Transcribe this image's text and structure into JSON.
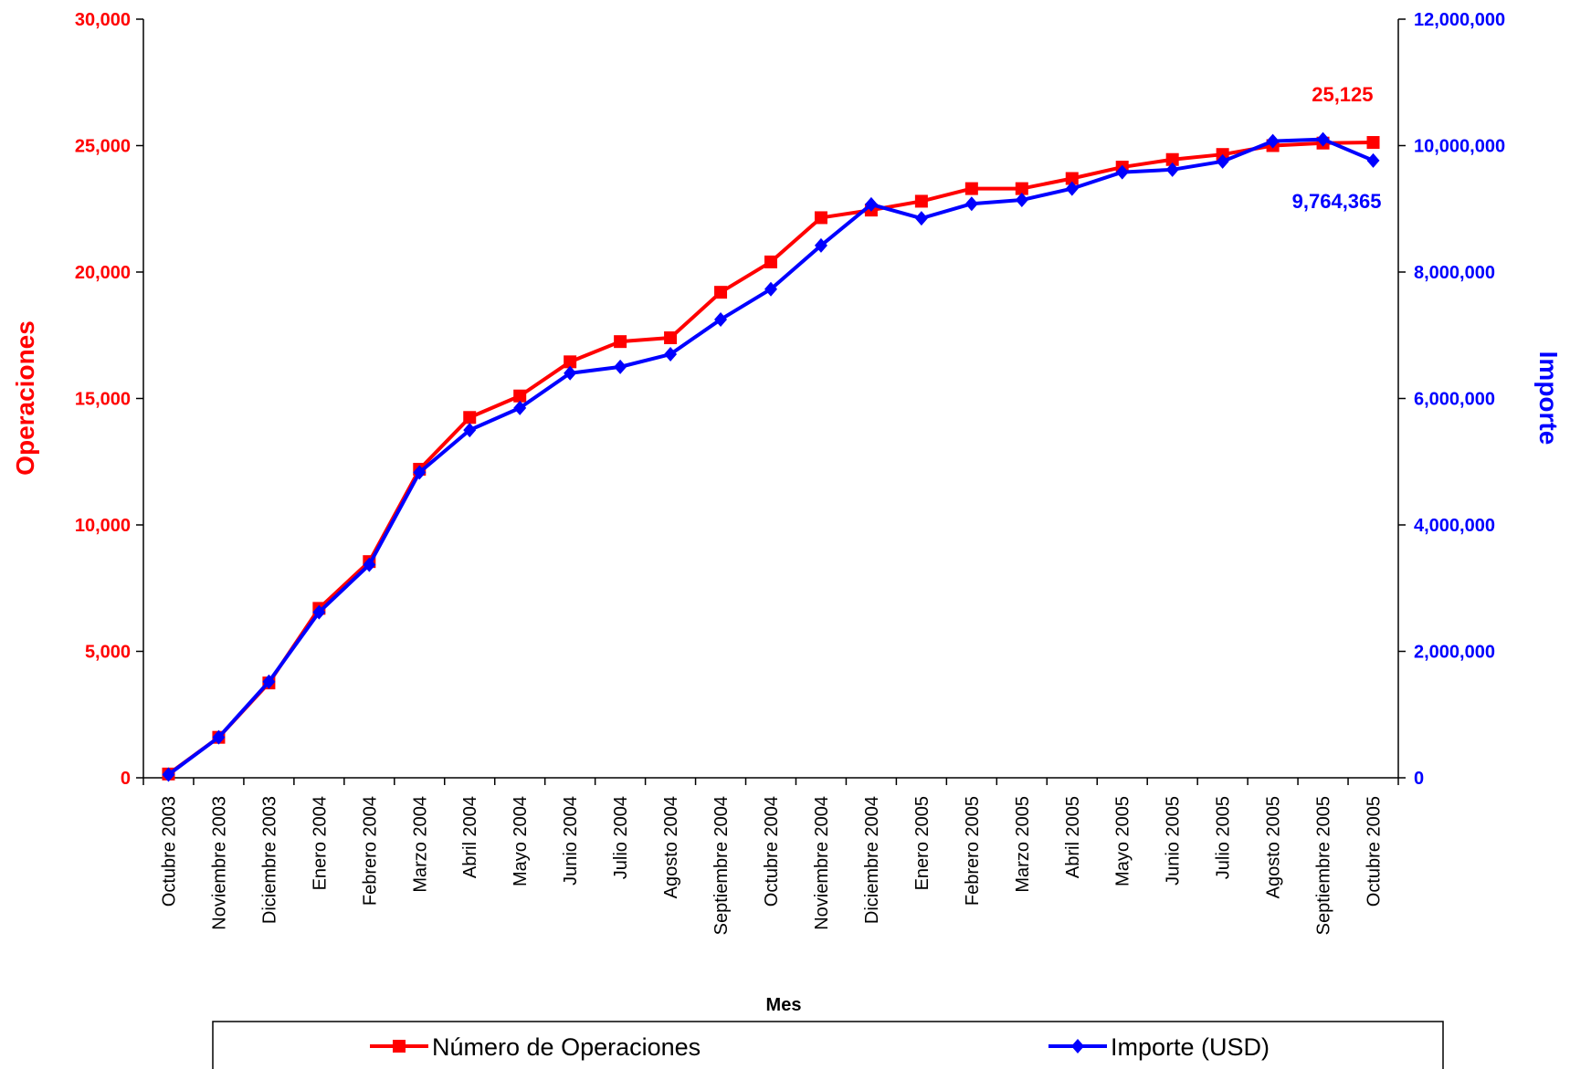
{
  "chart_data": {
    "type": "line",
    "xlabel": "Mes",
    "ylabel_left": "Operaciones",
    "ylabel_right": "Importe",
    "ylim_left": [
      0,
      30000
    ],
    "ylim_right": [
      0,
      12000000
    ],
    "yticks_left": [
      "0",
      "5,000",
      "10,000",
      "15,000",
      "20,000",
      "25,000",
      "30,000"
    ],
    "yticks_right": [
      "0",
      "2,000,000",
      "4,000,000",
      "6,000,000",
      "8,000,000",
      "10,000,000",
      "12,000,000"
    ],
    "grid": false,
    "legend_position": "bottom",
    "categories": [
      "Octubre 2003",
      "Noviembre 2003",
      "Diciembre 2003",
      "Enero 2004",
      "Febrero 2004",
      "Marzo 2004",
      "Abril 2004",
      "Mayo 2004",
      "Junio 2004",
      "Julio 2004",
      "Agosto 2004",
      "Septiembre 2004",
      "Octubre 2004",
      "Noviembre 2004",
      "Diciembre 2004",
      "Enero 2005",
      "Febrero 2005",
      "Marzo 2005",
      "Abril 2005",
      "Mayo 2005",
      "Junio 2005",
      "Julio 2005",
      "Agosto 2005",
      "Septiembre 2005",
      "Octubre 2005"
    ],
    "series": [
      {
        "name": "Número de Operaciones",
        "axis": "left",
        "color": "#ff0000",
        "marker": "square",
        "values": [
          150,
          1600,
          3750,
          6700,
          8550,
          12200,
          14250,
          15100,
          16450,
          17250,
          17400,
          19200,
          20400,
          22150,
          22450,
          22800,
          23300,
          23300,
          23700,
          24150,
          24450,
          24650,
          25000,
          25100,
          25125
        ]
      },
      {
        "name": "Importe (USD)",
        "axis": "right",
        "color": "#0000ff",
        "marker": "diamond",
        "values": [
          50000,
          640000,
          1520000,
          2620000,
          3370000,
          4830000,
          5500000,
          5850000,
          6400000,
          6500000,
          6700000,
          7250000,
          7730000,
          8420000,
          9070000,
          8850000,
          9080000,
          9140000,
          9320000,
          9580000,
          9620000,
          9750000,
          10070000,
          10100000,
          9764365
        ]
      }
    ],
    "annotations": [
      {
        "text": "25,125",
        "series": 0,
        "index": 24,
        "color": "#ff0000"
      },
      {
        "text": "9,764,365",
        "series": 1,
        "index": 24,
        "color": "#0000ff"
      }
    ]
  }
}
